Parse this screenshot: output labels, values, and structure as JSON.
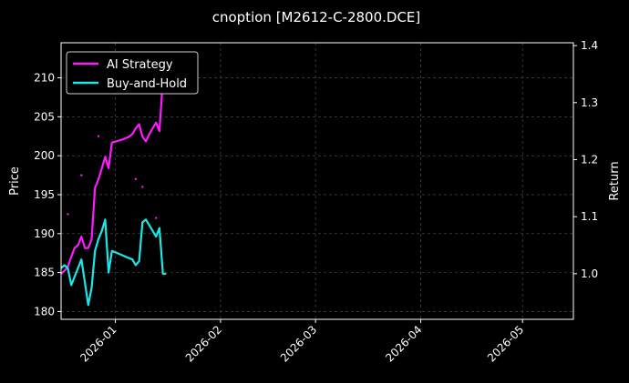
{
  "chart_data": {
    "type": "line",
    "title": "cnoption [M2612-C-2800.DCE]",
    "xlabel": "",
    "ylabel": "Price",
    "ylabel_right": "Return",
    "xlim": [
      "2025-12-16",
      "2026-05-16"
    ],
    "ylim": [
      179,
      214.5
    ],
    "ylim_right": [
      0.92,
      1.405
    ],
    "x_ticks": [
      {
        "date": "2026-01-01",
        "label": "2026-01"
      },
      {
        "date": "2026-02-01",
        "label": "2026-02"
      },
      {
        "date": "2026-03-01",
        "label": "2026-03"
      },
      {
        "date": "2026-04-01",
        "label": "2026-04"
      },
      {
        "date": "2026-05-01",
        "label": "2026-05"
      }
    ],
    "y_ticks": [
      180,
      185,
      190,
      195,
      200,
      205,
      210
    ],
    "y_ticks_right": [
      1.0,
      1.1,
      1.2,
      1.3,
      1.4
    ],
    "grid": true,
    "legend_position": "top-left",
    "series": [
      {
        "name": "AI Strategy",
        "axis": "right",
        "color": "#ff1aff",
        "points": [
          [
            "2025-12-16",
            1.0
          ],
          [
            "2025-12-17",
            1.005
          ],
          [
            "2025-12-18",
            1.012
          ],
          [
            "2025-12-19",
            1.03
          ],
          [
            "2025-12-20",
            1.045
          ],
          [
            "2025-12-21",
            1.05
          ],
          [
            "2025-12-22",
            1.065
          ],
          [
            "2025-12-23",
            1.045
          ],
          [
            "2025-12-24",
            1.045
          ],
          [
            "2025-12-25",
            1.06
          ],
          [
            "2025-12-26",
            1.15
          ],
          [
            "2025-12-27",
            1.165
          ],
          [
            "2025-12-28",
            1.185
          ],
          [
            "2025-12-29",
            1.205
          ],
          [
            "2025-12-30",
            1.185
          ],
          [
            "2025-12-31",
            1.23
          ],
          [
            "2026-01-03",
            1.235
          ],
          [
            "2026-01-05",
            1.24
          ],
          [
            "2026-01-06",
            1.245
          ],
          [
            "2026-01-07",
            1.255
          ],
          [
            "2026-01-08",
            1.262
          ],
          [
            "2026-01-09",
            1.24
          ],
          [
            "2026-01-10",
            1.232
          ],
          [
            "2026-01-11",
            1.245
          ],
          [
            "2026-01-12",
            1.255
          ],
          [
            "2026-01-13",
            1.265
          ],
          [
            "2026-01-14",
            1.25
          ],
          [
            "2026-01-15",
            1.34
          ],
          [
            "2026-01-16",
            1.365
          ]
        ]
      },
      {
        "name": "Buy-and-Hold",
        "axis": "right",
        "color": "#1ae8e8",
        "points": [
          [
            "2025-12-16",
            1.01
          ],
          [
            "2025-12-17",
            1.015
          ],
          [
            "2025-12-18",
            1.01
          ],
          [
            "2025-12-19",
            0.98
          ],
          [
            "2025-12-20",
            0.995
          ],
          [
            "2025-12-21",
            1.01
          ],
          [
            "2025-12-22",
            1.025
          ],
          [
            "2025-12-23",
            0.985
          ],
          [
            "2025-12-24",
            0.945
          ],
          [
            "2025-12-25",
            0.975
          ],
          [
            "2025-12-26",
            1.04
          ],
          [
            "2025-12-27",
            1.06
          ],
          [
            "2025-12-28",
            1.075
          ],
          [
            "2025-12-29",
            1.095
          ],
          [
            "2025-12-30",
            1.002
          ],
          [
            "2025-12-31",
            1.04
          ],
          [
            "2026-01-02",
            1.035
          ],
          [
            "2026-01-04",
            1.03
          ],
          [
            "2026-01-06",
            1.025
          ],
          [
            "2026-01-07",
            1.015
          ],
          [
            "2026-01-08",
            1.022
          ],
          [
            "2026-01-09",
            1.09
          ],
          [
            "2026-01-10",
            1.095
          ],
          [
            "2026-01-11",
            1.085
          ],
          [
            "2026-01-12",
            1.075
          ],
          [
            "2026-01-13",
            1.065
          ],
          [
            "2026-01-14",
            1.08
          ],
          [
            "2026-01-15",
            1.0
          ],
          [
            "2026-01-16",
            1.0
          ]
        ]
      }
    ],
    "trade_markers": {
      "color": "#ff1aff",
      "points": [
        [
          "2025-12-18",
          192.5
        ],
        [
          "2025-12-22",
          197.5
        ],
        [
          "2025-12-27",
          202.5
        ],
        [
          "2026-01-07",
          197.0
        ],
        [
          "2026-01-09",
          196.0
        ],
        [
          "2026-01-13",
          192.0
        ]
      ]
    }
  }
}
